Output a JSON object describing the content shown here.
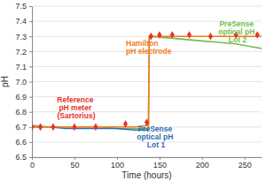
{
  "chart_data": {
    "type": "line",
    "x_label": "Time (hours)",
    "y_label": "pH",
    "xlim": [
      0,
      270
    ],
    "ylim": [
      6.5,
      7.5
    ],
    "xticks": [
      0,
      50,
      100,
      150,
      200,
      250
    ],
    "yticks": [
      6.5,
      6.6,
      6.7,
      6.8,
      6.9,
      {
        "value": 7,
        "label": "7.0"
      },
      7.1,
      7.2,
      7.3,
      7.4,
      7.5
    ],
    "grid": true,
    "series": [
      {
        "name": "PreSense optical pH Lot 2",
        "color": "#72be4b",
        "type": "line",
        "line_style": "solid",
        "x": [
          0,
          20,
          40,
          60,
          80,
          100,
          120,
          137,
          138,
          160,
          180,
          200,
          220,
          240,
          260,
          270
        ],
        "values": [
          6.71,
          6.7,
          6.7,
          6.7,
          6.7,
          6.69,
          6.69,
          6.69,
          7.3,
          7.29,
          7.28,
          7.27,
          7.26,
          7.25,
          7.23,
          7.22
        ]
      },
      {
        "name": "PreSense optical pH Lot 1",
        "color": "#2f6db3",
        "type": "line",
        "line_style": "solid",
        "x": [
          0,
          20,
          40,
          60,
          80,
          100,
          120,
          137
        ],
        "values": [
          6.7,
          6.7,
          6.69,
          6.69,
          6.69,
          6.69,
          6.68,
          6.68
        ]
      },
      {
        "name": "Hamilton pH electrode",
        "color": "#f07c1b",
        "type": "line",
        "line_style": "solid",
        "x": [
          0,
          20,
          40,
          60,
          80,
          100,
          120,
          137,
          138,
          160,
          180,
          200,
          220,
          240,
          260,
          270
        ],
        "values": [
          6.7,
          6.7,
          6.7,
          6.7,
          6.7,
          6.7,
          6.7,
          6.71,
          7.3,
          7.3,
          7.3,
          7.3,
          7.3,
          7.3,
          7.3,
          7.3
        ]
      },
      {
        "name": "Reference pH meter (Sartorius)",
        "color": "#e6332a",
        "type": "scatter",
        "marker": "diamond",
        "x": [
          0,
          10,
          25,
          50,
          75,
          110,
          135,
          140,
          150,
          165,
          185,
          210,
          240,
          265
        ],
        "values": [
          6.7,
          6.7,
          6.7,
          6.7,
          6.7,
          6.72,
          6.73,
          7.3,
          7.31,
          7.31,
          7.31,
          7.3,
          7.31,
          7.31
        ]
      }
    ]
  }
}
